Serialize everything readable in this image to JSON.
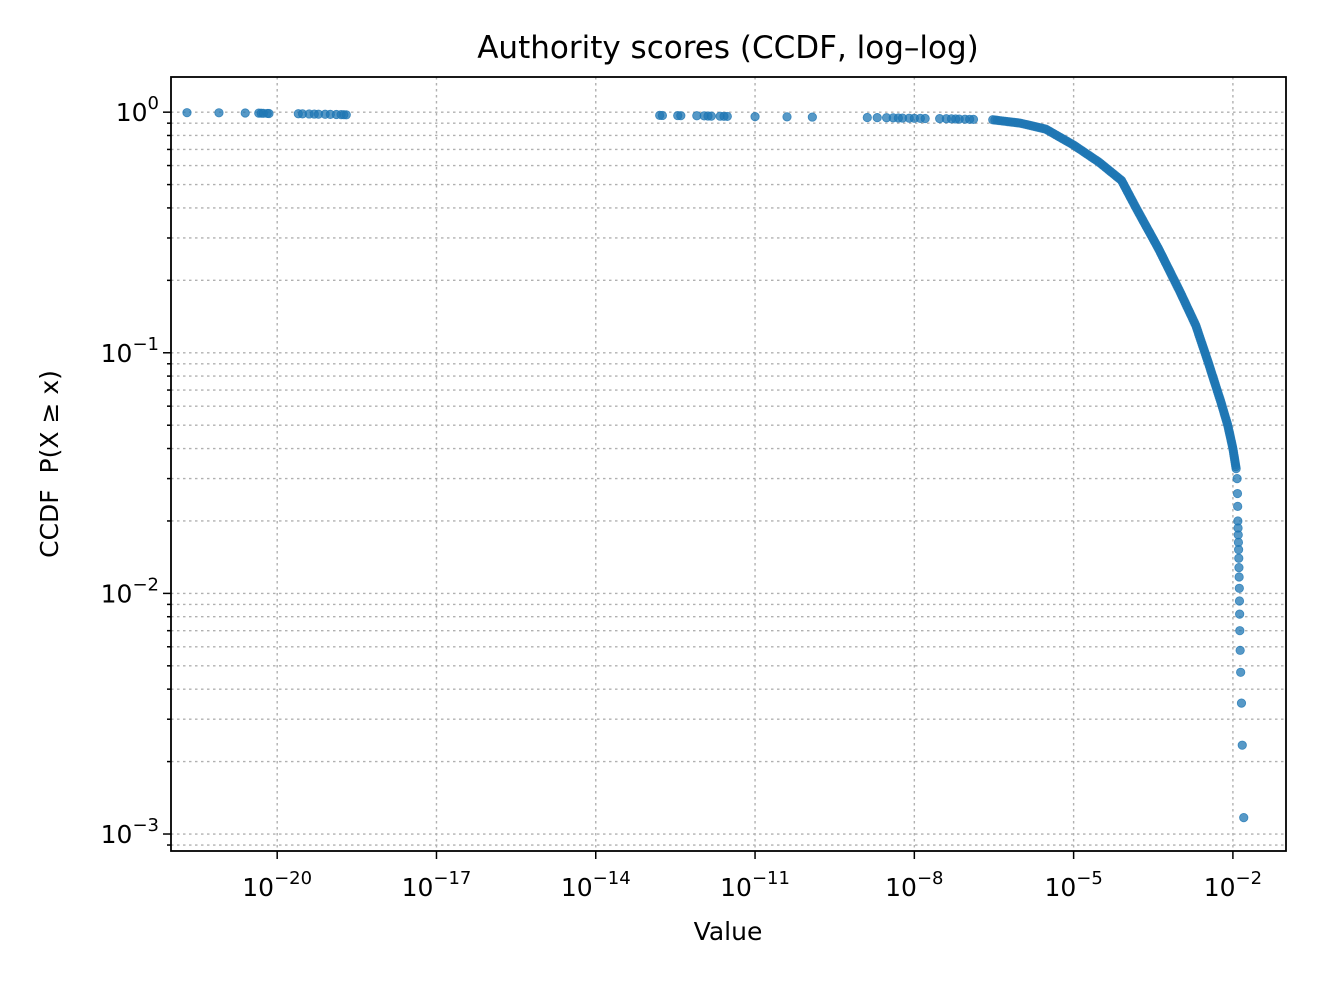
{
  "chart_data": {
    "type": "scatter",
    "title": "Authority scores (CCDF, log–log)",
    "xlabel": "Value",
    "ylabel": "CCDF  P(X ≥ x)",
    "xscale": "log",
    "yscale": "log",
    "xlim": [
      1e-22,
      0.1
    ],
    "ylim": [
      0.00085,
      1.4
    ],
    "grid": true,
    "grid_style": "dotted",
    "marker_color": "#1f77b4",
    "x_ticks": [
      {
        "base": "10",
        "exp": "−20",
        "value": 1e-20
      },
      {
        "base": "10",
        "exp": "−17",
        "value": 1e-17
      },
      {
        "base": "10",
        "exp": "−14",
        "value": 1e-14
      },
      {
        "base": "10",
        "exp": "−11",
        "value": 1e-11
      },
      {
        "base": "10",
        "exp": "−8",
        "value": 1e-08
      },
      {
        "base": "10",
        "exp": "−5",
        "value": 1e-05
      },
      {
        "base": "10",
        "exp": "−2",
        "value": 0.01
      }
    ],
    "y_ticks": [
      {
        "base": "10",
        "exp": "0",
        "value": 1
      },
      {
        "base": "10",
        "exp": "−1",
        "value": 0.1
      },
      {
        "base": "10",
        "exp": "−2",
        "value": 0.01
      },
      {
        "base": "10",
        "exp": "−3",
        "value": 0.001
      }
    ],
    "tail_points": [
      [
        0.016,
        0.00117
      ],
      [
        0.015,
        0.00234
      ],
      [
        0.0145,
        0.0035
      ],
      [
        0.014,
        0.0047
      ],
      [
        0.0137,
        0.0058
      ],
      [
        0.0135,
        0.007
      ],
      [
        0.0134,
        0.0082
      ],
      [
        0.0133,
        0.0093
      ],
      [
        0.0132,
        0.0105
      ],
      [
        0.0131,
        0.0117
      ],
      [
        0.013,
        0.0128
      ],
      [
        0.0129,
        0.014
      ],
      [
        0.0128,
        0.0152
      ],
      [
        0.0127,
        0.0163
      ],
      [
        0.0126,
        0.0175
      ],
      [
        0.0125,
        0.0187
      ],
      [
        0.0124,
        0.02
      ],
      [
        0.0123,
        0.023
      ],
      [
        0.0122,
        0.026
      ],
      [
        0.012,
        0.03
      ]
    ],
    "curve_points": [
      [
        3e-07,
        0.93
      ],
      [
        1e-06,
        0.9
      ],
      [
        3e-06,
        0.85
      ],
      [
        1e-05,
        0.73
      ],
      [
        3e-05,
        0.62
      ],
      [
        8e-05,
        0.52
      ],
      [
        0.00015,
        0.4
      ],
      [
        0.0004,
        0.27
      ],
      [
        0.001,
        0.18
      ],
      [
        0.002,
        0.13
      ],
      [
        0.0035,
        0.09
      ],
      [
        0.006,
        0.062
      ],
      [
        0.008,
        0.05
      ],
      [
        0.01,
        0.04
      ],
      [
        0.0115,
        0.033
      ]
    ],
    "plateau_points": [
      [
        2e-22,
        0.995
      ],
      [
        8e-22,
        0.994
      ],
      [
        2.5e-21,
        0.992
      ],
      [
        4.5e-21,
        0.991
      ],
      [
        5e-21,
        0.99
      ],
      [
        5.5e-21,
        0.989
      ],
      [
        6.5e-21,
        0.988
      ],
      [
        7e-21,
        0.987
      ],
      [
        2.5e-20,
        0.985
      ],
      [
        3e-20,
        0.984
      ],
      [
        4e-20,
        0.983
      ],
      [
        5e-20,
        0.982
      ],
      [
        6e-20,
        0.981
      ],
      [
        8e-20,
        0.98
      ],
      [
        1e-19,
        0.979
      ],
      [
        1.3e-19,
        0.978
      ],
      [
        1.6e-19,
        0.977
      ],
      [
        1.8e-19,
        0.976
      ],
      [
        2e-19,
        0.975
      ],
      [
        1.6e-13,
        0.97
      ],
      [
        1.8e-13,
        0.969
      ],
      [
        3.5e-13,
        0.968
      ],
      [
        4e-13,
        0.967
      ],
      [
        8e-13,
        0.966
      ],
      [
        1.1e-12,
        0.965
      ],
      [
        1.3e-12,
        0.964
      ],
      [
        1.5e-12,
        0.963
      ],
      [
        2.2e-12,
        0.962
      ],
      [
        2.6e-12,
        0.961
      ],
      [
        3e-12,
        0.96
      ],
      [
        1e-11,
        0.958
      ],
      [
        4e-11,
        0.956
      ],
      [
        1.2e-10,
        0.954
      ],
      [
        1.3e-09,
        0.95
      ],
      [
        2e-09,
        0.949
      ],
      [
        3e-09,
        0.948
      ],
      [
        4e-09,
        0.947
      ],
      [
        5e-09,
        0.946
      ],
      [
        6e-09,
        0.945
      ],
      [
        8e-09,
        0.944
      ],
      [
        1e-08,
        0.943
      ],
      [
        1.3e-08,
        0.942
      ],
      [
        1.6e-08,
        0.941
      ],
      [
        3e-08,
        0.94
      ],
      [
        4e-08,
        0.939
      ],
      [
        5e-08,
        0.938
      ],
      [
        6e-08,
        0.937
      ],
      [
        7e-08,
        0.936
      ],
      [
        9e-08,
        0.935
      ],
      [
        1.1e-07,
        0.934
      ],
      [
        1.3e-07,
        0.933
      ]
    ]
  }
}
